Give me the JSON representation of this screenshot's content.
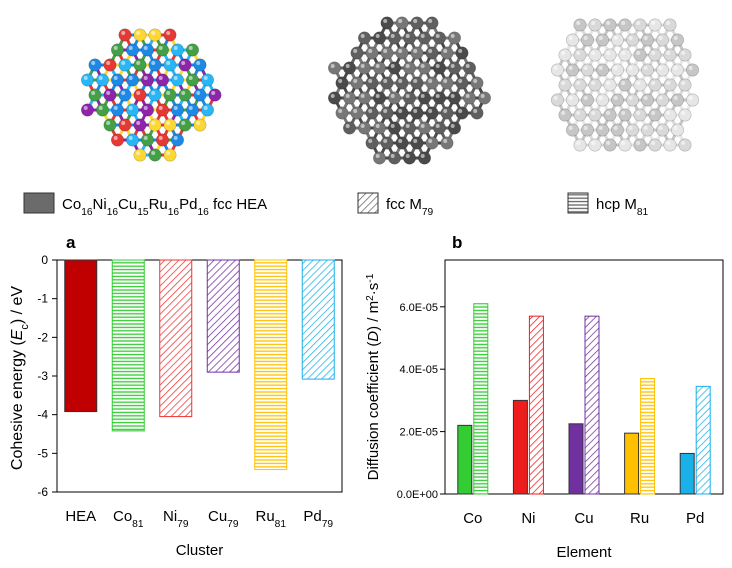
{
  "clusters": [
    {
      "name": "hea-cluster",
      "atom_colors": [
        "#e53935",
        "#fdd835",
        "#1e88e5",
        "#43a047",
        "#8e24aa",
        "#29b6f6"
      ]
    },
    {
      "name": "fcc-cluster",
      "atom_colors": [
        "#5f5f5f",
        "#777777",
        "#4a4a4a"
      ]
    },
    {
      "name": "hcp-cluster",
      "atom_colors": [
        "#d9d9d9",
        "#c6c6c6",
        "#e6e6e6"
      ]
    }
  ],
  "legend": {
    "items": [
      {
        "style": "solid",
        "label": "Co16Ni16Cu15Ru16Pd16 fcc HEA",
        "parts": [
          [
            "Co",
            ""
          ],
          [
            "16",
            "sub"
          ],
          [
            "Ni",
            ""
          ],
          [
            "16",
            "sub"
          ],
          [
            "Cu",
            ""
          ],
          [
            "15",
            "sub"
          ],
          [
            "Ru",
            ""
          ],
          [
            "16",
            "sub"
          ],
          [
            "Pd",
            ""
          ],
          [
            "16",
            "sub"
          ],
          [
            " fcc HEA",
            ""
          ]
        ]
      },
      {
        "style": "diag",
        "label": "fcc M79",
        "parts": [
          [
            "fcc M",
            ""
          ],
          [
            "79",
            "sub"
          ]
        ]
      },
      {
        "style": "horiz",
        "label": "hcp M81",
        "parts": [
          [
            "hcp M",
            ""
          ],
          [
            "81",
            "sub"
          ]
        ]
      }
    ]
  },
  "chart_data": [
    {
      "panel": "a",
      "type": "bar",
      "xlabel": "Cluster",
      "ylabel": "Cohesive energy (Ec) / eV",
      "ylabel_parts": [
        [
          "Cohesive energy (",
          ""
        ],
        [
          "E",
          "italic"
        ],
        [
          "c",
          "sub"
        ],
        [
          ") / eV",
          ""
        ]
      ],
      "ylim": [
        -6,
        0
      ],
      "yticks": [
        0,
        -1,
        -2,
        -3,
        -4,
        -5,
        -6
      ],
      "ytick_labels": [
        "0",
        "-1",
        "-2",
        "-3",
        "-4",
        "-5",
        "-6"
      ],
      "categories": [
        "HEA",
        "Co81",
        "Ni79",
        "Cu79",
        "Ru81",
        "Pd79"
      ],
      "category_parts": [
        [
          [
            "HEA",
            ""
          ]
        ],
        [
          [
            "Co",
            ""
          ],
          [
            "81",
            "sub"
          ]
        ],
        [
          [
            "Ni",
            ""
          ],
          [
            "79",
            "sub"
          ]
        ],
        [
          [
            "Cu",
            ""
          ],
          [
            "79",
            "sub"
          ]
        ],
        [
          [
            "Ru",
            ""
          ],
          [
            "81",
            "sub"
          ]
        ],
        [
          [
            "Pd",
            ""
          ],
          [
            "79",
            "sub"
          ]
        ]
      ],
      "values": [
        -3.92,
        -4.42,
        -4.05,
        -2.9,
        -5.42,
        -3.08
      ],
      "bar_colors": [
        "#c00000",
        "#33cc33",
        "#ee3333",
        "#7030a0",
        "#ffc000",
        "#1ab0e8"
      ],
      "bar_fills": [
        "solid",
        "horiz",
        "diag",
        "diag",
        "horiz",
        "diag"
      ]
    },
    {
      "panel": "b",
      "type": "bar",
      "xlabel": "Element",
      "ylabel": "Diffusion coefficient (D) / m2·s-1",
      "ylabel_parts": [
        [
          "Diffusion coefficient (",
          ""
        ],
        [
          "D",
          "italic"
        ],
        [
          ") / m",
          ""
        ],
        [
          "2",
          "sup"
        ],
        [
          "·s",
          ""
        ],
        [
          "-1",
          "sup"
        ]
      ],
      "ylim": [
        0,
        7.5e-05
      ],
      "yticks": [
        0,
        2e-05,
        4e-05,
        6e-05
      ],
      "ytick_labels": [
        "0.0E+00",
        "2.0E-05",
        "4.0E-05",
        "6.0E-05"
      ],
      "categories": [
        "Co",
        "Ni",
        "Cu",
        "Ru",
        "Pd"
      ],
      "colors": [
        "#33cc33",
        "#ee1c1c",
        "#7030a0",
        "#ffc000",
        "#1ab0e8"
      ],
      "series": [
        {
          "fill": "solid",
          "values": [
            2.2e-05,
            3e-05,
            2.25e-05,
            1.95e-05,
            1.3e-05
          ]
        },
        {
          "fill": "pattern",
          "values": [
            6.1e-05,
            5.7e-05,
            5.7e-05,
            3.7e-05,
            3.45e-05
          ],
          "patterns": [
            "horiz",
            "diag",
            "diag",
            "horiz",
            "diag"
          ]
        }
      ]
    }
  ]
}
